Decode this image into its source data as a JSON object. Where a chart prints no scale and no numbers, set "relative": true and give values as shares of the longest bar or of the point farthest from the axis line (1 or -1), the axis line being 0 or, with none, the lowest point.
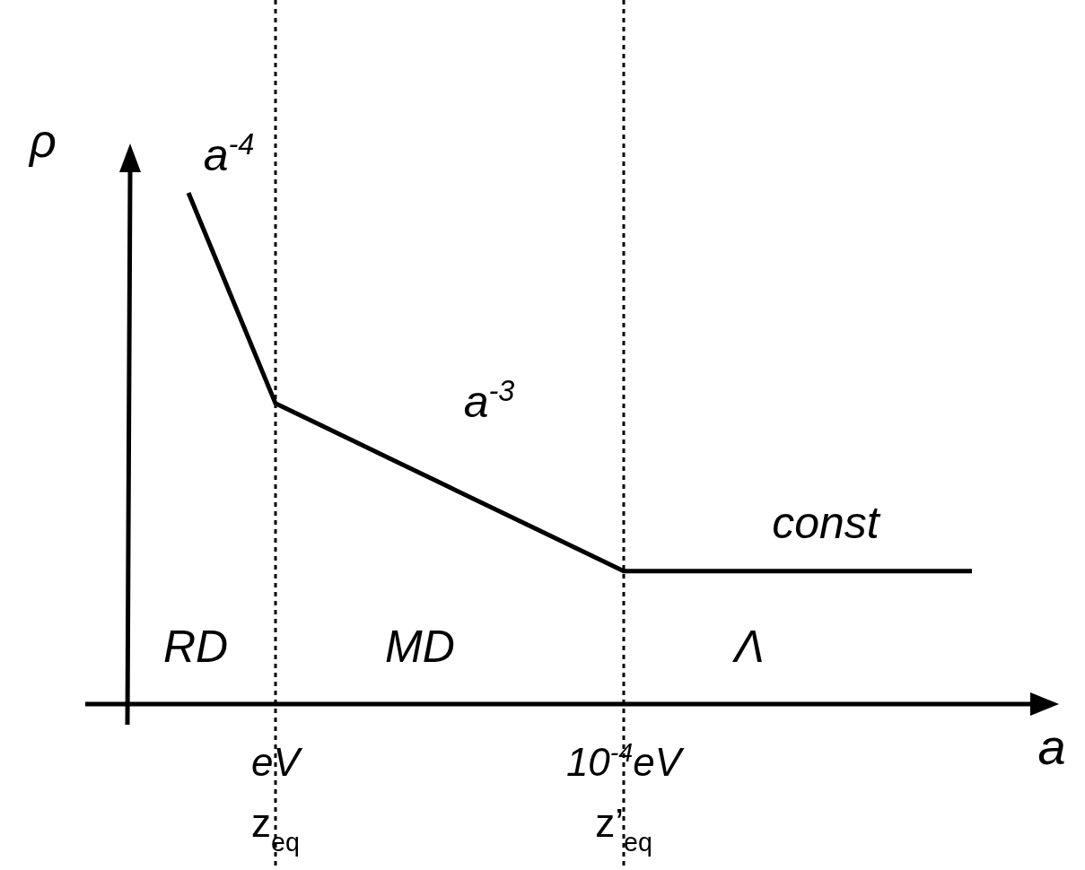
{
  "chart_data": {
    "type": "line",
    "relative": true,
    "xlabel": "a",
    "ylabel": "ρ",
    "tick_labels": "x",
    "line_style": "solid",
    "categories": [
      null,
      "eV z$_{eq}$",
      null,
      null,
      null,
      "10$^{-4}$eV z’$_{eq}$",
      null,
      null,
      null,
      null
    ],
    "series": [
      {
        "color": "#000000",
        "values": [
          1,
          0.588,
          0.506,
          0.424,
          0.342,
          0.26,
          0.26,
          0.26,
          0.26,
          0.26
        ]
      }
    ],
    "ref_lines": [
      {
        "axis": "x",
        "value": "eV z$_{eq}$",
        "line_style": "dotted",
        "color": "#000000"
      },
      {
        "axis": "x",
        "value": "10$^{-4}$eV z’$_{eq}$",
        "line_style": "dotted",
        "color": "#000000"
      }
    ],
    "annotations": [
      "a$^{-4}$",
      "a$^{-3}$",
      "const",
      "RD",
      "MD",
      "Λ"
    ]
  }
}
